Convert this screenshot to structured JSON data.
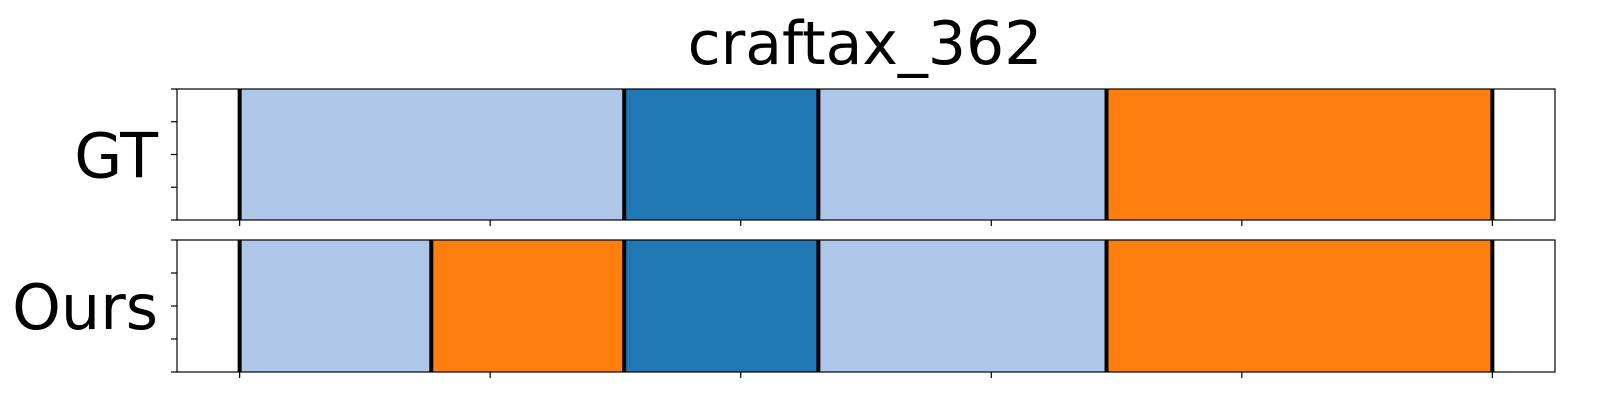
{
  "chart_data": {
    "type": "segmentation-timeline",
    "title": "craftax_362",
    "xlim": [
      -5,
      105
    ],
    "ylim": [
      0,
      1
    ],
    "x_ticks": [
      0,
      20,
      40,
      60,
      80,
      100
    ],
    "y_ticks": [
      0,
      0.25,
      0.5,
      0.75,
      1.0
    ],
    "tick_labels_visible": false,
    "grid": false,
    "legend": "none",
    "class_colors": {
      "light_blue": "#aec7e8",
      "blue": "#1f77b4",
      "orange": "#ff7f0e"
    },
    "boundary_color": "#000000",
    "rows": [
      {
        "label": "GT",
        "segments": [
          {
            "start": 0,
            "end": 30.7,
            "class": "light_blue"
          },
          {
            "start": 30.7,
            "end": 46.2,
            "class": "blue"
          },
          {
            "start": 46.2,
            "end": 69.2,
            "class": "light_blue"
          },
          {
            "start": 69.2,
            "end": 100,
            "class": "orange"
          }
        ]
      },
      {
        "label": "Ours",
        "segments": [
          {
            "start": 0,
            "end": 15.3,
            "class": "light_blue"
          },
          {
            "start": 15.3,
            "end": 30.7,
            "class": "orange"
          },
          {
            "start": 30.7,
            "end": 46.2,
            "class": "blue"
          },
          {
            "start": 46.2,
            "end": 69.2,
            "class": "light_blue"
          },
          {
            "start": 69.2,
            "end": 100,
            "class": "orange"
          }
        ]
      }
    ]
  }
}
